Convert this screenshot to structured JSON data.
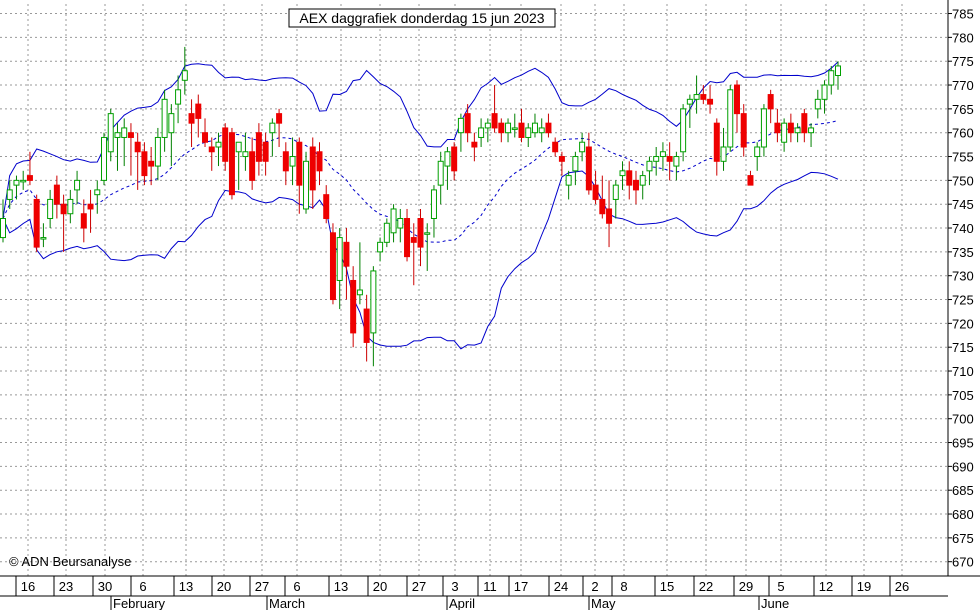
{
  "chart_data": {
    "type": "candlestick",
    "title": "AEX daggrafiek donderdag 15 jun 2023",
    "copyright": "© ADN Beursanalyse",
    "ylim": [
      667,
      787
    ],
    "y_ticks": [
      670,
      675,
      680,
      685,
      690,
      695,
      700,
      705,
      710,
      715,
      720,
      725,
      730,
      735,
      740,
      745,
      750,
      755,
      760,
      765,
      770,
      775,
      780,
      785
    ],
    "x_ticks": [
      "16",
      "23",
      "30",
      "6",
      "13",
      "20",
      "27",
      "6",
      "13",
      "20",
      "27",
      "3",
      "11",
      "17",
      "24",
      "2",
      "8",
      "15",
      "22",
      "29",
      "5",
      "12",
      "19",
      "26"
    ],
    "months": [
      "February",
      "March",
      "April",
      "May",
      "June"
    ],
    "grid": true,
    "colors": {
      "up": "#00a000",
      "down": "#ee0000",
      "bands": "#0000cc",
      "grid": "#999999"
    },
    "series": [
      {
        "role": "candles",
        "ohlc": [
          [
            738,
            746,
            737,
            742
          ],
          [
            746,
            750,
            744,
            748
          ],
          [
            749,
            751,
            746,
            750
          ],
          [
            750,
            752,
            748,
            750
          ],
          [
            751,
            756,
            749,
            750
          ],
          [
            746,
            747,
            735,
            736
          ],
          [
            738,
            741,
            736,
            738
          ],
          [
            742,
            748,
            740,
            746
          ],
          [
            749,
            751,
            742,
            745
          ],
          [
            745,
            747,
            735,
            743
          ],
          [
            743,
            748,
            741,
            746
          ],
          [
            748,
            752,
            745,
            750
          ],
          [
            743,
            746,
            737,
            740
          ],
          [
            745,
            748,
            739,
            744
          ],
          [
            747,
            750,
            743,
            748
          ],
          [
            750,
            760,
            749,
            759
          ],
          [
            756,
            765,
            754,
            764
          ],
          [
            759,
            762,
            752,
            760
          ],
          [
            759,
            763,
            753,
            761
          ],
          [
            760,
            762,
            751,
            759
          ],
          [
            758,
            760,
            748,
            756
          ],
          [
            756,
            758,
            749,
            751
          ],
          [
            754,
            757,
            749,
            753
          ],
          [
            753,
            761,
            750,
            759
          ],
          [
            759,
            769,
            756,
            767
          ],
          [
            760,
            766,
            753,
            764
          ],
          [
            766,
            772,
            762,
            769
          ],
          [
            771,
            778,
            768,
            773
          ],
          [
            764,
            767,
            757,
            762
          ],
          [
            766,
            768,
            759,
            763
          ],
          [
            760,
            763,
            757,
            758
          ],
          [
            757,
            759,
            752,
            756
          ],
          [
            757,
            760,
            753,
            758
          ],
          [
            761,
            762,
            752,
            754
          ],
          [
            760,
            761,
            746,
            747
          ],
          [
            756,
            758,
            748,
            758
          ],
          [
            755,
            760,
            752,
            756
          ],
          [
            756,
            759,
            748,
            750
          ],
          [
            760,
            762,
            751,
            754
          ],
          [
            758,
            760,
            751,
            754
          ],
          [
            760,
            763,
            755,
            762
          ],
          [
            764,
            765,
            757,
            762
          ],
          [
            756,
            758,
            749,
            752
          ],
          [
            753,
            759,
            749,
            755
          ],
          [
            758,
            759,
            743,
            749
          ],
          [
            744,
            756,
            743,
            754
          ],
          [
            757,
            759,
            744,
            748
          ],
          [
            756,
            758,
            749,
            752
          ],
          [
            747,
            749,
            741,
            742
          ],
          [
            739,
            741,
            724,
            725
          ],
          [
            729,
            740,
            723,
            738
          ],
          [
            737,
            740,
            725,
            732
          ],
          [
            729,
            732,
            715,
            718
          ],
          [
            726,
            737,
            724,
            727
          ],
          [
            723,
            726,
            712,
            716
          ],
          [
            718,
            732,
            711,
            731
          ],
          [
            735,
            738,
            733,
            737
          ],
          [
            737,
            742,
            736,
            741
          ],
          [
            739,
            745,
            737,
            744
          ],
          [
            740,
            744,
            737,
            742
          ],
          [
            742,
            744,
            733,
            734
          ],
          [
            738,
            741,
            728,
            737
          ],
          [
            742,
            744,
            732,
            736
          ],
          [
            739,
            741,
            731,
            739
          ],
          [
            742,
            749,
            738,
            748
          ],
          [
            749,
            756,
            745,
            754
          ],
          [
            753,
            757,
            748,
            756
          ],
          [
            757,
            758,
            750,
            752
          ],
          [
            760,
            764,
            756,
            763
          ],
          [
            764,
            766,
            758,
            760
          ],
          [
            758,
            760,
            754,
            757
          ],
          [
            759,
            763,
            757,
            761
          ],
          [
            761,
            763,
            758,
            762
          ],
          [
            764,
            770,
            760,
            761
          ],
          [
            762,
            763,
            758,
            760
          ],
          [
            760,
            763,
            758,
            762
          ],
          [
            761,
            764,
            759,
            761
          ],
          [
            762,
            765,
            758,
            759
          ],
          [
            759,
            762,
            757,
            761
          ],
          [
            760,
            764,
            759,
            762
          ],
          [
            760,
            763,
            758,
            761
          ],
          [
            762,
            764,
            759,
            760
          ],
          [
            758,
            759,
            755,
            756
          ],
          [
            755,
            756,
            751,
            754
          ],
          [
            749,
            752,
            746,
            751
          ],
          [
            752,
            756,
            749,
            755
          ],
          [
            756,
            760,
            754,
            758
          ],
          [
            757,
            760,
            747,
            748
          ],
          [
            749,
            752,
            745,
            746
          ],
          [
            746,
            751,
            742,
            743
          ],
          [
            744,
            750,
            736,
            741
          ],
          [
            746,
            750,
            742,
            749
          ],
          [
            751,
            754,
            748,
            752
          ],
          [
            752,
            754,
            746,
            749
          ],
          [
            750,
            752,
            745,
            748
          ],
          [
            749,
            752,
            746,
            751
          ],
          [
            752,
            755,
            749,
            754
          ],
          [
            754,
            757,
            751,
            755
          ],
          [
            755,
            758,
            752,
            756
          ],
          [
            755,
            758,
            750,
            754
          ],
          [
            753,
            756,
            750,
            755
          ],
          [
            756,
            766,
            754,
            765
          ],
          [
            766,
            768,
            761,
            767
          ],
          [
            767,
            772,
            764,
            768
          ],
          [
            768,
            770,
            766,
            767
          ],
          [
            767,
            770,
            764,
            766
          ],
          [
            762,
            763,
            751,
            754
          ],
          [
            754,
            761,
            752,
            757
          ],
          [
            757,
            770,
            756,
            769
          ],
          [
            770,
            771,
            760,
            764
          ],
          [
            764,
            766,
            755,
            757
          ],
          [
            751,
            752,
            749,
            749
          ],
          [
            755,
            758,
            752,
            757
          ],
          [
            757,
            766,
            755,
            765
          ],
          [
            768,
            769,
            762,
            765
          ],
          [
            762,
            765,
            758,
            760
          ],
          [
            758,
            763,
            756,
            762
          ],
          [
            762,
            764,
            758,
            760
          ],
          [
            760,
            762,
            758,
            761
          ],
          [
            764,
            765,
            758,
            760
          ],
          [
            760,
            762,
            757,
            761
          ],
          [
            765,
            769,
            763,
            767
          ],
          [
            767,
            771,
            764,
            770
          ],
          [
            770,
            774,
            768,
            773
          ],
          [
            772,
            775,
            769,
            774
          ]
        ]
      },
      {
        "role": "upper-band",
        "values": [
          745,
          748,
          750,
          753,
          756,
          760,
          763,
          765,
          766,
          767,
          767,
          766,
          765,
          764,
          763,
          763,
          764,
          766,
          767,
          769,
          770,
          771,
          772,
          773,
          773,
          773,
          773,
          773,
          773,
          773,
          772,
          772,
          772,
          772,
          772,
          772,
          772,
          772,
          772,
          772,
          772,
          772,
          772,
          772,
          772,
          772,
          772,
          772,
          772,
          772,
          772,
          773,
          774,
          776,
          777,
          776,
          775,
          774,
          773,
          773,
          772,
          771,
          770,
          769,
          768,
          767,
          766,
          766,
          766,
          766,
          766,
          766,
          766,
          767,
          768,
          769,
          770,
          771,
          772,
          772,
          772,
          772,
          772,
          772,
          772,
          772,
          772,
          771,
          770,
          769,
          768,
          767,
          767,
          767,
          767,
          767,
          767,
          768,
          769,
          770,
          771,
          771,
          771,
          772,
          772,
          772,
          772,
          772,
          772,
          772,
          772,
          772,
          771,
          770,
          769,
          768,
          768,
          767,
          767,
          767,
          767,
          767,
          767,
          767,
          767,
          767,
          767,
          767,
          767,
          767
        ]
      }
    ]
  }
}
